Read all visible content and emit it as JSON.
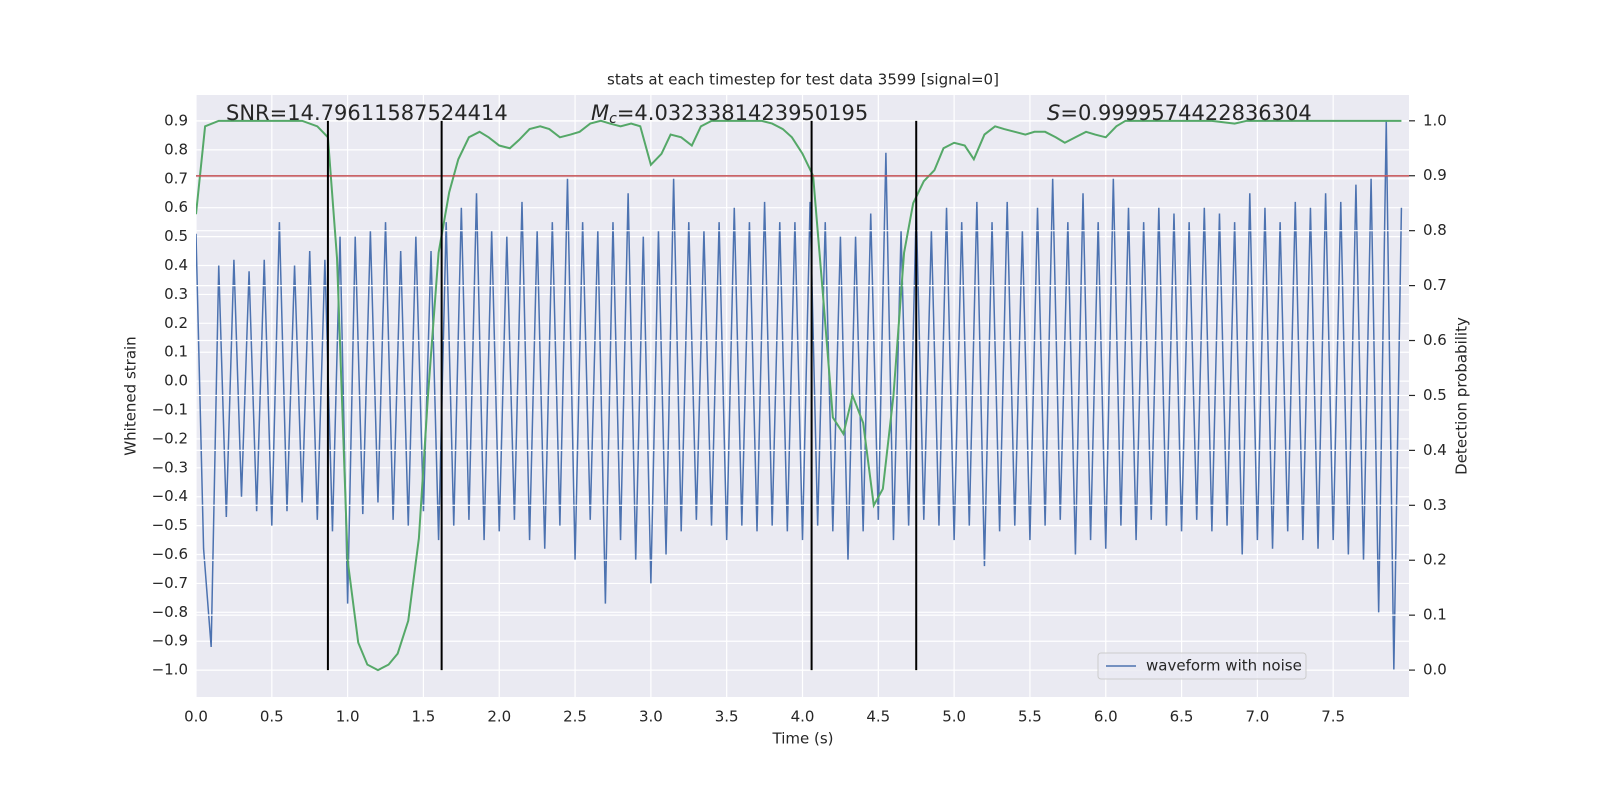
{
  "chart_data": {
    "type": "line",
    "title": "stats at each timestep for test data 3599 [signal=0]",
    "x_label": "Time (s)",
    "y_label": "Whitened strain",
    "y2_label": "Detection probability",
    "annotations": [
      {
        "text": "SNR=14.79611587524414"
      },
      {
        "symbol": "M",
        "subscript": "c",
        "text": "=4.0323381423950195"
      },
      {
        "symbol": "S",
        "text": "=0.9999574422836304"
      }
    ],
    "xlim": [
      0,
      8.0
    ],
    "xticks": [
      {
        "value": 0,
        "label": "0.0"
      },
      0.5,
      {
        "value": 1,
        "label": "1.0"
      },
      1.5,
      {
        "value": 2,
        "label": "2.0"
      },
      2.5,
      {
        "value": 3,
        "label": "3.0"
      },
      3.5,
      {
        "value": 4,
        "label": "4.0"
      },
      4.5,
      {
        "value": 5,
        "label": "5.0"
      },
      5.5,
      {
        "value": 6,
        "label": "6.0"
      },
      6.5,
      {
        "value": 7,
        "label": "7.0"
      },
      7.5
    ],
    "ylim": [
      -1.093,
      0.99
    ],
    "yticks": [
      {
        "value": -1.0,
        "label": "−1.0"
      },
      {
        "value": -0.9,
        "label": "−0.9"
      },
      {
        "value": -0.8,
        "label": "−0.8"
      },
      {
        "value": -0.7,
        "label": "−0.7"
      },
      {
        "value": -0.6,
        "label": "−0.6"
      },
      {
        "value": -0.5,
        "label": "−0.5"
      },
      {
        "value": -0.4,
        "label": "−0.4"
      },
      {
        "value": -0.3,
        "label": "−0.3"
      },
      {
        "value": -0.2,
        "label": "−0.2"
      },
      {
        "value": -0.1,
        "label": "−0.1"
      },
      {
        "value": 0,
        "label": "0.0"
      },
      0.1,
      0.2,
      0.3,
      0.4,
      0.5,
      0.6,
      0.7,
      0.8,
      0.9
    ],
    "y2lim": [
      -0.049,
      1.047
    ],
    "y2ticks": [
      {
        "value": 0,
        "label": "0.0"
      },
      0.1,
      0.2,
      0.3,
      0.4,
      0.5,
      0.6,
      0.7,
      0.8,
      0.9,
      {
        "value": 1,
        "label": "1.0"
      }
    ],
    "grid": true,
    "legend": "lower right",
    "series": [
      {
        "name": "waveform with noise",
        "color": "#4c72b0",
        "x": [
          0.0,
          0.05,
          0.1,
          0.15,
          0.2,
          0.25,
          0.3,
          0.35,
          0.4,
          0.45,
          0.5,
          0.55,
          0.6,
          0.65,
          0.7,
          0.75,
          0.8,
          0.85,
          0.9,
          0.95,
          1.0,
          1.05,
          1.1,
          1.15,
          1.2,
          1.25,
          1.3,
          1.35,
          1.4,
          1.45,
          1.5,
          1.55,
          1.6,
          1.65,
          1.7,
          1.75,
          1.8,
          1.85,
          1.9,
          1.95,
          2.0,
          2.05,
          2.1,
          2.15,
          2.2,
          2.25,
          2.3,
          2.35,
          2.4,
          2.45,
          2.5,
          2.55,
          2.6,
          2.65,
          2.7,
          2.75,
          2.8,
          2.85,
          2.9,
          2.95,
          3.0,
          3.05,
          3.1,
          3.15,
          3.2,
          3.25,
          3.3,
          3.35,
          3.4,
          3.45,
          3.5,
          3.55,
          3.6,
          3.65,
          3.7,
          3.75,
          3.8,
          3.85,
          3.9,
          3.95,
          4.0,
          4.05,
          4.1,
          4.15,
          4.2,
          4.25,
          4.3,
          4.35,
          4.4,
          4.45,
          4.5,
          4.55,
          4.6,
          4.65,
          4.7,
          4.75,
          4.8,
          4.85,
          4.9,
          4.95,
          5.0,
          5.05,
          5.1,
          5.15,
          5.2,
          5.25,
          5.3,
          5.35,
          5.4,
          5.45,
          5.5,
          5.55,
          5.6,
          5.65,
          5.7,
          5.75,
          5.8,
          5.85,
          5.9,
          5.95,
          6.0,
          6.05,
          6.1,
          6.15,
          6.2,
          6.25,
          6.3,
          6.35,
          6.4,
          6.45,
          6.5,
          6.55,
          6.6,
          6.65,
          6.7,
          6.75,
          6.8,
          6.85,
          6.9,
          6.95,
          7.0,
          7.05,
          7.1,
          7.15,
          7.2,
          7.25,
          7.3,
          7.35,
          7.4,
          7.45,
          7.5,
          7.55,
          7.6,
          7.65,
          7.7,
          7.75,
          7.8,
          7.85,
          7.9,
          7.95
        ],
        "values": [
          0.51,
          -0.58,
          -0.92,
          0.4,
          -0.47,
          0.42,
          -0.4,
          0.38,
          -0.45,
          0.42,
          -0.5,
          0.55,
          -0.45,
          0.4,
          -0.42,
          0.45,
          -0.48,
          0.42,
          -0.52,
          0.5,
          -0.77,
          0.5,
          -0.46,
          0.52,
          -0.42,
          0.55,
          -0.48,
          0.45,
          -0.5,
          0.5,
          -0.45,
          0.45,
          -0.55,
          0.55,
          -0.5,
          0.6,
          -0.48,
          0.65,
          -0.55,
          0.52,
          -0.52,
          0.5,
          -0.48,
          0.62,
          -0.55,
          0.52,
          -0.58,
          0.55,
          -0.5,
          0.7,
          -0.62,
          0.55,
          -0.48,
          0.52,
          -0.77,
          0.55,
          -0.55,
          0.65,
          -0.62,
          0.5,
          -0.7,
          0.52,
          -0.6,
          0.7,
          -0.52,
          0.55,
          -0.48,
          0.52,
          -0.5,
          0.55,
          -0.55,
          0.6,
          -0.5,
          0.55,
          -0.52,
          0.62,
          -0.5,
          0.55,
          -0.52,
          0.55,
          -0.55,
          0.62,
          -0.5,
          0.55,
          -0.52,
          0.5,
          -0.62,
          0.5,
          -0.52,
          0.58,
          -0.48,
          0.79,
          -0.55,
          0.52,
          -0.5,
          0.6,
          -0.48,
          0.52,
          -0.5,
          0.6,
          -0.55,
          0.55,
          -0.5,
          0.62,
          -0.64,
          0.55,
          -0.52,
          0.62,
          -0.5,
          0.52,
          -0.55,
          0.6,
          -0.5,
          0.7,
          -0.48,
          0.55,
          -0.6,
          0.65,
          -0.55,
          0.55,
          -0.58,
          0.7,
          -0.5,
          0.6,
          -0.55,
          0.55,
          -0.48,
          0.6,
          -0.5,
          0.58,
          -0.52,
          0.55,
          -0.48,
          0.6,
          -0.52,
          0.58,
          -0.5,
          0.55,
          -0.6,
          0.65,
          -0.55,
          0.6,
          -0.58,
          0.55,
          -0.52,
          0.62,
          -0.55,
          0.6,
          -0.58,
          0.65,
          -0.55,
          0.62,
          -0.6,
          0.68,
          -0.62,
          0.7,
          -0.8,
          0.9,
          -1.0,
          0.6
        ]
      },
      {
        "color": "#55a868",
        "axis": "y2",
        "x": [
          0,
          0.06,
          0.15,
          0.3,
          0.5,
          0.7,
          0.8,
          0.87,
          0.93,
          1.0,
          1.07,
          1.13,
          1.2,
          1.27,
          1.33,
          1.4,
          1.47,
          1.53,
          1.6,
          1.67,
          1.73,
          1.8,
          1.87,
          1.93,
          2.0,
          2.07,
          2.13,
          2.2,
          2.27,
          2.33,
          2.4,
          2.47,
          2.53,
          2.6,
          2.67,
          2.73,
          2.8,
          2.87,
          2.93,
          3.0,
          3.07,
          3.13,
          3.2,
          3.27,
          3.33,
          3.4,
          3.5,
          3.6,
          3.73,
          3.8,
          3.87,
          3.93,
          4.0,
          4.07,
          4.13,
          4.2,
          4.27,
          4.33,
          4.4,
          4.47,
          4.53,
          4.6,
          4.67,
          4.73,
          4.8,
          4.87,
          4.93,
          5.0,
          5.07,
          5.13,
          5.2,
          5.27,
          5.33,
          5.4,
          5.47,
          5.53,
          5.6,
          5.67,
          5.73,
          5.8,
          5.87,
          5.93,
          6.0,
          6.07,
          6.13,
          6.3,
          6.5,
          6.7,
          6.85,
          6.93,
          7.2,
          7.5,
          7.75,
          7.95
        ],
        "values": [
          0.83,
          0.99,
          1.0,
          1.0,
          1.0,
          1.0,
          0.99,
          0.97,
          0.75,
          0.2,
          0.05,
          0.01,
          0.0,
          0.01,
          0.03,
          0.09,
          0.24,
          0.5,
          0.76,
          0.87,
          0.93,
          0.97,
          0.98,
          0.97,
          0.955,
          0.95,
          0.965,
          0.985,
          0.99,
          0.985,
          0.97,
          0.975,
          0.98,
          0.995,
          1.0,
          0.995,
          0.99,
          0.995,
          0.99,
          0.92,
          0.94,
          0.975,
          0.97,
          0.955,
          0.99,
          1.0,
          1.0,
          1.0,
          1.0,
          0.995,
          0.985,
          0.97,
          0.94,
          0.9,
          0.7,
          0.46,
          0.43,
          0.5,
          0.45,
          0.3,
          0.33,
          0.5,
          0.76,
          0.85,
          0.89,
          0.91,
          0.95,
          0.96,
          0.955,
          0.93,
          0.975,
          0.99,
          0.985,
          0.98,
          0.975,
          0.98,
          0.98,
          0.97,
          0.96,
          0.97,
          0.98,
          0.975,
          0.97,
          0.99,
          1.0,
          1.0,
          1.0,
          1.0,
          0.995,
          1.0,
          1.0,
          1.0,
          1.0,
          1.0
        ]
      }
    ],
    "hline": {
      "value": 0.71,
      "color": "#c44e52"
    },
    "vlines": {
      "values": [
        0.87,
        1.62,
        4.06,
        4.75
      ],
      "color": "#000000"
    }
  }
}
